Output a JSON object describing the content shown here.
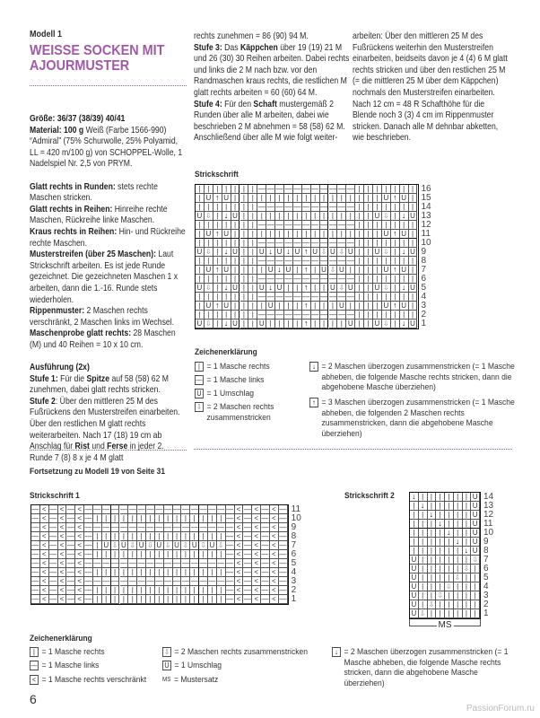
{
  "header": {
    "model_label": "Modell 1",
    "title_line1": "WEISSE SOCKEN MIT",
    "title_line2": "AJOURMUSTER"
  },
  "colors": {
    "accent": "#a05aa8",
    "text": "#2b2b2b"
  },
  "columns": {
    "left": [
      [
        {
          "b": true,
          "t": "Größe: 36/37 (38/39) 40/41"
        }
      ],
      [
        {
          "b": true,
          "t": "Material: 100 g"
        },
        {
          "t": " Weiß (Farbe 1566-990) “Admiral” (75% Schurwolle, 25% Polyamid, LL = 420 m/100 g) von SCHOPPEL-Wolle, 1 Nadelspiel Nr. 2,5 von PRYM."
        }
      ],
      [],
      [
        {
          "b": true,
          "t": "Glatt rechts in Runden:"
        },
        {
          "t": " stets rechte Maschen stricken."
        }
      ],
      [
        {
          "b": true,
          "t": "Glatt rechts in Reihen:"
        },
        {
          "t": " Hinreihe rechte Maschen, Rückreihe linke Maschen."
        }
      ],
      [
        {
          "b": true,
          "t": "Kraus rechts in Reihen:"
        },
        {
          "t": " Hin- und Rückreihe rechte Maschen."
        }
      ],
      [
        {
          "b": true,
          "t": "Musterstreifen (über 25 Maschen):"
        },
        {
          "t": " Laut Strickschrift arbeiten. Es ist jede Runde gezeichnet. Die gezeichneten Maschen 1 x arbeiten, dann die 1.-16. Runde stets wiederholen."
        }
      ],
      [
        {
          "b": true,
          "t": "Rippenmuster:"
        },
        {
          "t": " 2 Maschen rechts verschränkt, 2 Maschen links im Wechsel."
        }
      ],
      [
        {
          "b": true,
          "t": "Maschenprobe glatt rechts:"
        },
        {
          "t": " 28 Maschen (M) und 40 Reihen = 10 x 10 cm."
        }
      ],
      [],
      [
        {
          "b": true,
          "t": "Ausführung (2x)"
        }
      ],
      [
        {
          "b": true,
          "t": "Stufe 1:"
        },
        {
          "t": " Für die "
        },
        {
          "b": true,
          "t": "Spitze"
        },
        {
          "t": " auf 58 (58) 62 M zunehmen, dabei glatt rechts stricken."
        }
      ],
      [
        {
          "b": true,
          "t": "Stufe 2"
        },
        {
          "t": ": Über den mittleren 25 M des Fußrückens den Musterstreifen einarbeiten. Über den restlichen M glatt rechts weiterarbeiten. Nach 17 (18) 19 cm ab Anschlag für "
        },
        {
          "b": true,
          "t": "Rist"
        },
        {
          "t": " und "
        },
        {
          "b": true,
          "t": "Ferse"
        },
        {
          "t": " in jeder 2. Runde 7 (8) 8 x je 4 M glatt"
        }
      ]
    ],
    "middle": [
      [
        {
          "t": "rechts zunehmen = 86 (90) 94 M."
        }
      ],
      [
        {
          "b": true,
          "t": "Stufe 3:"
        },
        {
          "t": " Das "
        },
        {
          "b": true,
          "t": "Käppchen"
        },
        {
          "t": " über 19 (19) 21 M und 26 (30) 30 Reihen arbeiten. Dabei rechts und links die 2 M nach bzw. vor den Randmaschen kraus rechts, die restlichen M glatt rechts arbeiten = 60 (60) 64 M."
        }
      ],
      [
        {
          "b": true,
          "t": "Stufe 4:"
        },
        {
          "t": " Für den "
        },
        {
          "b": true,
          "t": "Schaft"
        },
        {
          "t": " mustergemäß 2 Runden über alle M arbeiten, dabei wie beschrieben 2 M abnehmen = 58 (58) 62 M. Anschließend über alle M wie folgt weiter-"
        }
      ]
    ],
    "right": [
      [
        {
          "t": "arbeiten: Über den mittleren 25 M des Fußrückens weiterhin den Musterstreifen einarbeiten, beidseits davon je 4 (4) 6 M glatt rechts stricken und über den restlichen 25 M (= die mittleren 25 M über dem Käppchen) nochmals den Musterstreifen einarbeiten. Nach 12 cm = 48 R Schafthöhe für die Blende noch 3 (3) 4 cm im Rippenmuster stricken. Danach alle M dehnbar abketten, wie beschrieben."
        }
      ]
    ]
  },
  "symbols": {
    "K": "|",
    "P": "—",
    "U": "U",
    "T": "⇩",
    "D": "↓",
    "A": "↑",
    "X": "<"
  },
  "chart_main": {
    "label": "Strickschrift",
    "row_numbers": [
      "16",
      "15",
      "14",
      "13",
      "12",
      "11",
      "10",
      "9",
      "8",
      "7",
      "6",
      "5",
      "4",
      "3",
      "2",
      "1"
    ],
    "rows": [
      "KKKKKKKPPPPPPPPPPPKKKKKKK",
      "KUAUKKKKKKKKKKKKKKKKKUAUK",
      "KKKKKKKPPPPPPPPPPPKKKKKKK",
      "UTKDUKKKKKKKKKKKKKKKUTKDU",
      "KKKKKKKPPPPPPPPPPPKKKKKKK",
      "KUAUKKKKKKKKKKKKKKKKKUAUK",
      "KKKKKKKPPPPPPPPPPPKKKKKKK",
      "UTKDUKKUDUDUAUTUTUKKUTKDU",
      "KKKKKKKPPPPPPPPPPPKKKKKKK",
      "KUAUKKKKUDUKAKUTUKKKKUAUK",
      "KKKKKKKPPPPPPPPPPPKKKKKKK",
      "UTKDUKKUDUKKAKKUTUKKUTKDU",
      "KKKKKKKPPPPPPPPPPPKKKKKKK",
      "KUAUKKKKUKKKAKKKUKKKKUAUK",
      "KKKKKKKPPPPPPPPPPPKKKKKKK",
      "UTKDUKKUKKKKAKKKKUKKUTKDU"
    ]
  },
  "legend_main": {
    "title": "Zeichenerklärung",
    "items": [
      {
        "sym": "K",
        "text": "= 1 Masche rechts"
      },
      {
        "sym": "P",
        "text": "= 1 Masche links"
      },
      {
        "sym": "U",
        "text": "= 1 Umschlag"
      },
      {
        "sym": "T",
        "text": "= 2 Maschen rechts zusammenstricken"
      },
      {
        "sym": "D",
        "text": "= 2 Maschen überzogen zusammenstricken (= 1 Masche abheben, die folgende Masche rechts stricken, dann die abgehobene Masche überziehen)"
      },
      {
        "sym": "A",
        "text": "= 3 Maschen überzogen zusammenstricken (= 1 Masche abheben, die folgenden 2 Maschen rechts zusammenstricken, dann die abgehobene Masche überziehen)"
      }
    ]
  },
  "continuation": {
    "title": "Fortsetzung zu Modell 19 von Seite 31"
  },
  "chart_1": {
    "label": "Strickschrift 1",
    "row_numbers": [
      "11",
      "10",
      "9",
      "8",
      "7",
      "6",
      "5",
      "4",
      "3",
      "2",
      "1"
    ],
    "rows": [
      "PXPXPXPPPPPPPPPPPPPPPPPXPXPXP",
      "PXPXPXPKKKKKKKKKKKKKKKPXPXPXP",
      "PXPXPXPPPPPPPPPPPPPPPPPXPXPXP",
      "PXPXPXPKKKKKKKKKKKKKKKPXPXPXP",
      "PXPXPXPKUTUTUTUTUTUTUTPXPXPXP",
      "PXPXPXPKKKKKKKKKKKKKKKPXPXPXP",
      "PXPXPXPPPPPPPPPPPPPPPPPXPXPXP",
      "PXPXPXPKKKKKKKKKKKKKKKPXPXPXP",
      "PXPXPXPPPPPPPPPPPPPPPPPXPXPXP",
      "PXPXPXPKKKKKKKKKKKKKKKPXPXPXP",
      "PXPXPXPKKKKKKKKKKKKKKKPXPXPXP"
    ]
  },
  "chart_2": {
    "label": "Strickschrift 2",
    "repeat_label": "MS",
    "row_numbers": [
      "14",
      "13",
      "12",
      "11",
      "10",
      "9",
      "8",
      "7",
      "6",
      "5",
      "4",
      "3",
      "2",
      "1"
    ],
    "rows": [
      "DKKKKKKU",
      "KDKKKKKU",
      "KKDKKKKU",
      "KKKDKKKU",
      "KKKKDKKU",
      "KKKKKDKU",
      "KKKKKKDU",
      "UKKKKKKT",
      "UKKKKKTK",
      "UKKKKTKK",
      "UKKKTKKK",
      "UKKTKKKK",
      "UKTKKKKK",
      "UTKKKKKK"
    ]
  },
  "legend_2": {
    "title": "Zeichenerklärung",
    "items": [
      {
        "sym": "K",
        "text": "= 1 Masche rechts"
      },
      {
        "sym": "P",
        "text": "= 1 Masche links"
      },
      {
        "sym": "X",
        "text": "= 1 Masche rechts verschränkt"
      },
      {
        "sym": "T",
        "text": "= 2 Maschen rechts zusammenstricken"
      },
      {
        "sym": "U",
        "text": "= 1 Umschlag"
      },
      {
        "sym": "MS",
        "text": "= Mustersatz"
      },
      {
        "sym": "D",
        "text": "= 2 Maschen überzogen zusammenstricken (= 1 Masche abheben, die folgende Masche rechts stricken, dann die abgehobene Masche überziehen)"
      }
    ]
  },
  "footer": {
    "page_number": "6",
    "watermark": "PassionForum.ru"
  }
}
